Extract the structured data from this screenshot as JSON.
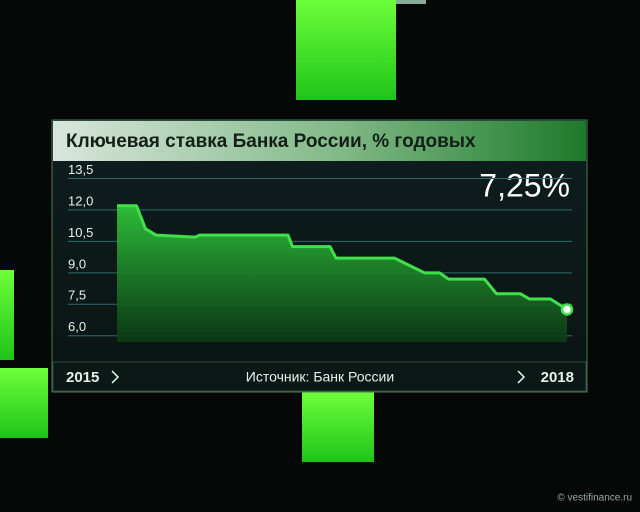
{
  "chart_data": {
    "type": "area",
    "title": "Ключевая ставка Банка России, % годовых",
    "annotation": "7,25%",
    "source": "Источник: Банк России",
    "watermark": "© vestifinance.ru",
    "x": [
      2015.0,
      2015.13,
      2015.19,
      2015.26,
      2015.52,
      2015.55,
      2016.14,
      2016.17,
      2016.42,
      2016.46,
      2016.75,
      2016.85,
      2016.95,
      2017.05,
      2017.15,
      2017.21,
      2017.45,
      2017.53,
      2017.69,
      2017.75,
      2017.89,
      2018.0
    ],
    "values": [
      12.2,
      12.2,
      11.1,
      10.8,
      10.7,
      10.8,
      10.8,
      10.25,
      10.25,
      9.7,
      9.7,
      9.7,
      9.35,
      9.0,
      9.0,
      8.7,
      8.7,
      8.0,
      8.0,
      7.75,
      7.75,
      7.25
    ],
    "color": "#3fe04a",
    "xlim": [
      2015,
      2018
    ],
    "xticks": [
      2015,
      2018
    ],
    "ylim": [
      5.7,
      14.0
    ],
    "yticks": [
      {
        "value": 13.5,
        "label": "13,5"
      },
      {
        "value": 12.0,
        "label": "12,0"
      },
      {
        "value": 10.5,
        "label": "10,5"
      },
      {
        "value": 9.0,
        "label": "9,0"
      },
      {
        "value": 7.5,
        "label": "7,5"
      },
      {
        "value": 6.0,
        "label": "6,0"
      }
    ],
    "grid": true
  }
}
